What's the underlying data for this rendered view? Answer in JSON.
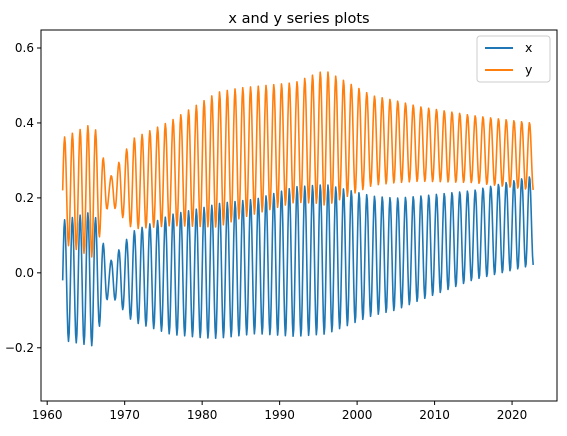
{
  "chart_data": {
    "type": "line",
    "title": "x and y series plots",
    "xlabel": "",
    "ylabel": "",
    "xlim": [
      1959.2,
      2025.8
    ],
    "ylim": [
      -0.342,
      0.648
    ],
    "xticks": [
      1960,
      1970,
      1980,
      1990,
      2000,
      2010,
      2020
    ],
    "yticks": [
      -0.2,
      0.0,
      0.2,
      0.4,
      0.6
    ],
    "ytick_labels": [
      "−0.2",
      "0.0",
      "0.2",
      "0.4",
      "0.6"
    ],
    "grid": false,
    "legend": "top-right",
    "x_start": 1962.0,
    "x_step": 0.0833,
    "series": [
      {
        "name": "x",
        "color": "#1f77b4",
        "generator": {
          "trend": [
            [
              1962,
              -0.02
            ],
            [
              1980,
              0.0
            ],
            [
              1992,
              0.03
            ],
            [
              2005,
              0.05
            ],
            [
              2022.8,
              0.14
            ]
          ],
          "amp": [
            [
              1962,
              0.16
            ],
            [
              1966,
              0.18
            ],
            [
              1968,
              0.04
            ],
            [
              1971,
              0.12
            ],
            [
              1976,
              0.16
            ],
            [
              1982,
              0.18
            ],
            [
              1987,
              0.18
            ],
            [
              1992,
              0.2
            ],
            [
              1996,
              0.2
            ],
            [
              2002,
              0.16
            ],
            [
              2008,
              0.14
            ],
            [
              2015,
              0.12
            ],
            [
              2022.8,
              0.12
            ]
          ],
          "period": 1.0,
          "phase": 0.0
        }
      },
      {
        "name": "y",
        "color": "#ff7f0e",
        "generator": {
          "trend": [
            [
              1962,
              0.22
            ],
            [
              1968,
              0.22
            ],
            [
              1975,
              0.26
            ],
            [
              1985,
              0.32
            ],
            [
              1995,
              0.36
            ],
            [
              2005,
              0.35
            ],
            [
              2015,
              0.33
            ],
            [
              2022.8,
              0.31
            ]
          ],
          "amp": [
            [
              1962,
              0.14
            ],
            [
              1966,
              0.18
            ],
            [
              1968,
              0.03
            ],
            [
              1971,
              0.12
            ],
            [
              1976,
              0.14
            ],
            [
              1982,
              0.18
            ],
            [
              1987,
              0.17
            ],
            [
              1992,
              0.16
            ],
            [
              1996,
              0.18
            ],
            [
              2002,
              0.12
            ],
            [
              2008,
              0.1
            ],
            [
              2015,
              0.09
            ],
            [
              2022.8,
              0.09
            ]
          ],
          "period": 1.0,
          "phase": 0.0
        }
      }
    ]
  }
}
